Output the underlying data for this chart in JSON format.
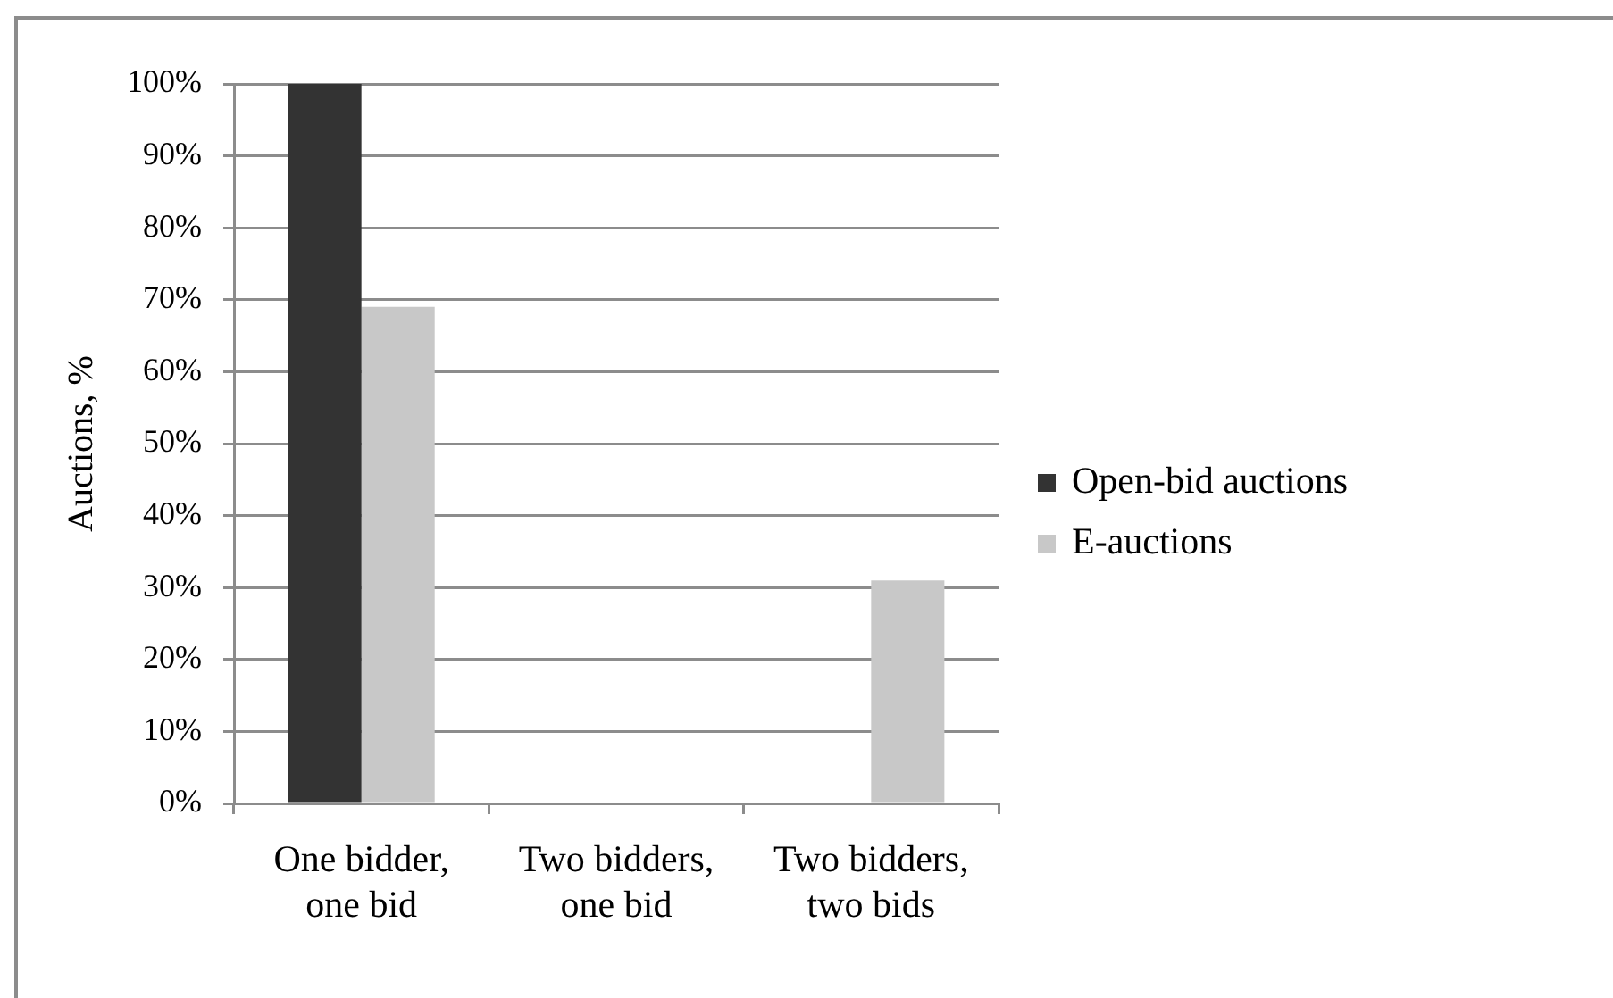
{
  "chart_data": {
    "type": "bar",
    "categories": [
      "One bidder, one bid",
      "Two bidders, one bid",
      "Two bidders, two bids"
    ],
    "series": [
      {
        "name": "Open-bid auctions",
        "color": "#333333",
        "values": [
          100,
          0,
          0
        ]
      },
      {
        "name": "E-auctions",
        "color": "#c8c8c8",
        "values": [
          69,
          0,
          31
        ]
      }
    ],
    "ylabel": "Auctions, %",
    "ylim": [
      0,
      100
    ],
    "yticks": [
      {
        "value": 0,
        "label": "0%"
      },
      {
        "value": 10,
        "label": "10%"
      },
      {
        "value": 20,
        "label": "20%"
      },
      {
        "value": 30,
        "label": "30%"
      },
      {
        "value": 40,
        "label": "40%"
      },
      {
        "value": 50,
        "label": "50%"
      },
      {
        "value": 60,
        "label": "60%"
      },
      {
        "value": 70,
        "label": "70%"
      },
      {
        "value": 80,
        "label": "80%"
      },
      {
        "value": 90,
        "label": "90%"
      },
      {
        "value": 100,
        "label": "100%"
      }
    ],
    "grid": "y",
    "legend": "right"
  }
}
